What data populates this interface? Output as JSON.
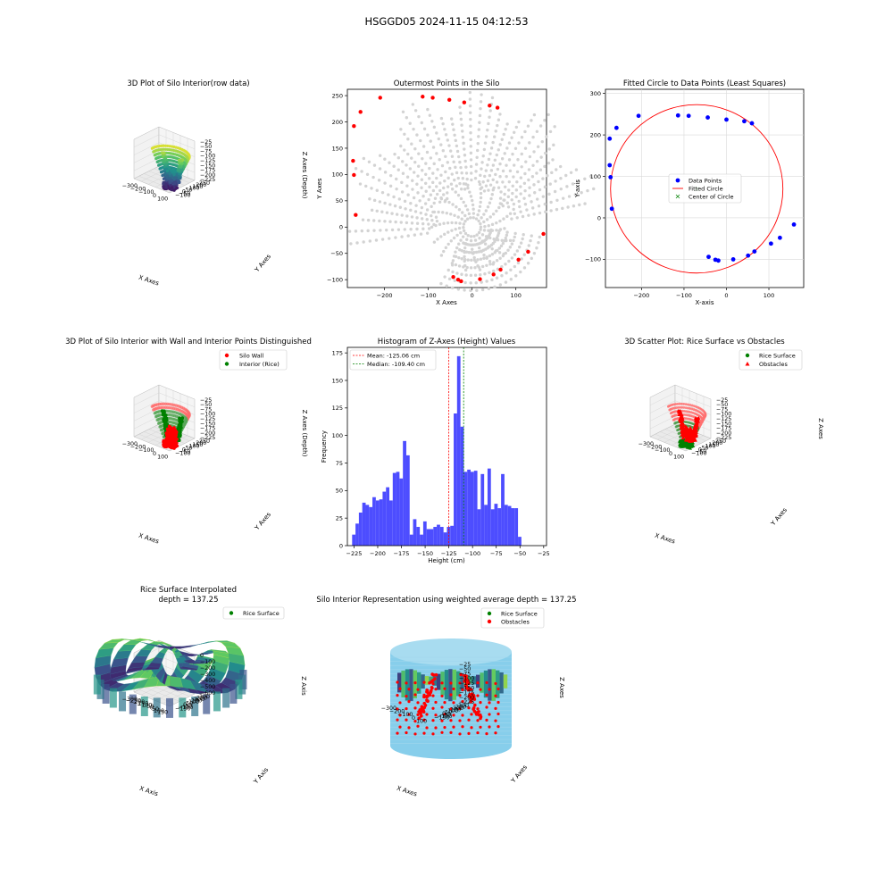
{
  "suptitle": "HSGGD05 2024-11-15 04:12:53",
  "colors": {
    "wall": "#ff0000",
    "rice": "#008000",
    "grey": "#d3d3d3",
    "blue": "#0000ff",
    "hist": "#4d4dff",
    "silo": "#87ceeb"
  },
  "panels": {
    "p1": {
      "title": "3D Plot of Silo Interior(row data)",
      "xlabel": "X Axes",
      "ylabel": "Y Axes",
      "zlabel": "Z Axes (Depth)",
      "xticks": [
        "−300",
        "−200",
        "−100",
        "0",
        "100"
      ],
      "yticks": [
        "−100",
        "−50",
        "0",
        "50",
        "100",
        "150",
        "200",
        "250"
      ],
      "zticks": [
        "−25",
        "−50",
        "−75",
        "−100",
        "−125",
        "−150",
        "−175",
        "−200",
        "−225"
      ]
    },
    "p4": {
      "title": "3D Plot of Silo Interior with Wall and Interior Points Distinguished",
      "xlabel": "X Axes",
      "ylabel": "Y Axes",
      "zlabel": "Z Axes (Depth)",
      "legend": [
        "Silo Wall",
        "Interior (Rice)"
      ],
      "xticks": [
        "−300",
        "−200",
        "−100",
        "0",
        "100"
      ],
      "yticks": [
        "−100",
        "−50",
        "0",
        "50",
        "100",
        "150",
        "200",
        "250"
      ],
      "zticks": [
        "−25",
        "−50",
        "−75",
        "−100",
        "−125",
        "−150",
        "−175",
        "−200",
        "−225"
      ]
    },
    "p6": {
      "title": "3D Scatter Plot: Rice Surface vs Obstacles",
      "xlabel": "X Axes",
      "ylabel": "Y Axes",
      "zlabel": "Z Axes",
      "legend": [
        "Rice Surface",
        "Obstacles"
      ],
      "xticks": [
        "−300",
        "−200",
        "−100",
        "0",
        "100"
      ],
      "yticks": [
        "−100",
        "−50",
        "0",
        "50",
        "100",
        "150",
        "200",
        "250"
      ],
      "zticks": [
        "−25",
        "−50",
        "−75",
        "−100",
        "−125",
        "−150",
        "−175",
        "−200",
        "−225"
      ]
    },
    "p7": {
      "title": "Rice Surface Interpolated",
      "subtitle": "depth = 137.25",
      "xlabel": "X Axis",
      "ylabel": "Y Axis",
      "zlabel": "Z Axis",
      "legend": [
        "Rice Surface"
      ],
      "xticks": [
        "−300",
        "−250",
        "−200",
        "−150",
        "−100",
        "−50",
        "0",
        "50",
        "100",
        "150"
      ],
      "yticks": [
        "−150",
        "−100",
        "−50",
        "0",
        "50",
        "100",
        "150",
        "200",
        "250",
        "300"
      ],
      "zticks": [
        "0",
        "−100",
        "−200",
        "−300",
        "−400",
        "−500",
        "−600"
      ]
    },
    "p8": {
      "title": "Silo Interior Representation using weighted average depth = 137.25",
      "xlabel": "X Axes",
      "ylabel": "Y Axes",
      "zlabel": "Z Axes",
      "legend": [
        "Rice Surface",
        "Obstacles"
      ],
      "xticks": [
        "−300",
        "−200",
        "−100",
        "0",
        "100"
      ],
      "yticks": [
        "−150",
        "−100",
        "−50",
        "0",
        "50",
        "100",
        "150",
        "200",
        "250",
        "300"
      ],
      "zticks": [
        "−25",
        "−50",
        "−75",
        "−100",
        "−125",
        "−150",
        "−175",
        "−200",
        "−225"
      ]
    }
  },
  "chart_data": [
    {
      "id": "outermost",
      "type": "scatter",
      "title": "Outermost Points in the Silo",
      "xlabel": "X Axes",
      "ylabel": "Y Axes",
      "xlim": [
        -285,
        170
      ],
      "ylim": [
        -115,
        262
      ],
      "xticks": [
        -200,
        -100,
        0,
        100
      ],
      "yticks": [
        -100,
        -50,
        0,
        50,
        100,
        150,
        200,
        250
      ],
      "grey_points": "radial fan of ~4000 scanner returns converging toward (0, 0)",
      "outermost_points": [
        [
          -270,
          192
        ],
        [
          -255,
          219
        ],
        [
          -210,
          246
        ],
        [
          -113,
          248
        ],
        [
          -90,
          246
        ],
        [
          -52,
          242
        ],
        [
          -18,
          237
        ],
        [
          40,
          231
        ],
        [
          58,
          227
        ],
        [
          -272,
          126
        ],
        [
          -270,
          99
        ],
        [
          -266,
          23
        ],
        [
          163,
          -13
        ],
        [
          128,
          -47
        ],
        [
          106,
          -62
        ],
        [
          65,
          -81
        ],
        [
          49,
          -90
        ],
        [
          18,
          -99
        ],
        [
          -25,
          -103
        ],
        [
          -32,
          -100
        ],
        [
          -43,
          -95
        ]
      ]
    },
    {
      "id": "fitted",
      "type": "scatter",
      "title": "Fitted Circle to Data Points (Least Squares)",
      "xlabel": "X-axis",
      "ylabel": "Y-axis",
      "xlim": [
        -285,
        182
      ],
      "ylim": [
        -168,
        310
      ],
      "xticks": [
        -200,
        -100,
        0,
        100
      ],
      "yticks": [
        -100,
        0,
        100,
        200,
        300
      ],
      "legend": [
        "Data Points",
        "Fitted Circle",
        "Center of Circle"
      ],
      "grid": true,
      "points": [
        [
          -275,
          191
        ],
        [
          -259,
          217
        ],
        [
          -207,
          246
        ],
        [
          -114,
          247
        ],
        [
          -89,
          246
        ],
        [
          -44,
          242
        ],
        [
          0,
          237
        ],
        [
          42,
          233
        ],
        [
          60,
          228
        ],
        [
          -275,
          127
        ],
        [
          -273,
          98
        ],
        [
          -270,
          22
        ],
        [
          159,
          -16
        ],
        [
          126,
          -48
        ],
        [
          105,
          -62
        ],
        [
          66,
          -81
        ],
        [
          51,
          -91
        ],
        [
          16,
          -100
        ],
        [
          -19,
          -103
        ],
        [
          -26,
          -101
        ],
        [
          -42,
          -94
        ]
      ],
      "circle": {
        "cx": -70,
        "cy": 70,
        "r": 203
      }
    },
    {
      "id": "histogram",
      "type": "bar",
      "title": "Histogram of Z-Axes (Height) Values",
      "xlabel": "Height (cm)",
      "ylabel": "Frequency",
      "xlim": [
        -232,
        -22
      ],
      "ylim": [
        0,
        180
      ],
      "xticks": [
        -225,
        -200,
        -175,
        -150,
        -125,
        -100,
        -75,
        -50,
        -25
      ],
      "yticks": [
        0,
        25,
        50,
        75,
        100,
        125,
        150,
        175
      ],
      "bin_start": -227,
      "bin_width": 3.57,
      "frequencies": [
        10,
        20,
        30,
        39,
        37,
        35,
        44,
        41,
        42,
        49,
        53,
        41,
        66,
        67,
        61,
        95,
        82,
        10,
        24,
        17,
        10,
        22,
        15,
        15,
        17,
        19,
        17,
        12,
        17,
        18,
        120,
        172,
        108,
        67,
        69,
        67,
        68,
        33,
        65,
        37,
        70,
        33,
        38,
        34,
        65,
        37,
        36,
        34,
        34,
        8
      ],
      "mean": -125.06,
      "median": -109.4,
      "mean_label": "Mean: -125.06 cm",
      "median_label": "Median: -109.40 cm"
    }
  ]
}
